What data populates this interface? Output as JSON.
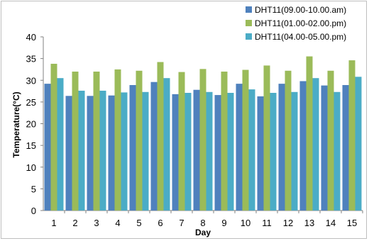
{
  "chart_data": {
    "type": "bar",
    "title": "",
    "xlabel": "Day",
    "ylabel": "Temperature(°C)",
    "categories": [
      "1",
      "2",
      "3",
      "4",
      "5",
      "6",
      "7",
      "8",
      "9",
      "10",
      "11",
      "12",
      "13",
      "14",
      "15"
    ],
    "ylim": [
      0,
      40
    ],
    "yticks": [
      0,
      5,
      10,
      15,
      20,
      25,
      30,
      35,
      40
    ],
    "grid": false,
    "legend_position": "top-right",
    "series": [
      {
        "name": "DHT11(09.00-10.00.am)",
        "color": "#4f81bd",
        "values": [
          29.2,
          26.4,
          26.4,
          26.5,
          28.9,
          29.6,
          26.8,
          27.8,
          26.6,
          29.2,
          26.3,
          29.2,
          29.8,
          28.8,
          28.9
        ]
      },
      {
        "name": "DHT11(01.00-02.00.pm)",
        "color": "#9bbb59",
        "values": [
          33.8,
          32.0,
          32.0,
          32.5,
          32.2,
          34.2,
          31.9,
          32.6,
          32.0,
          32.4,
          33.4,
          32.2,
          35.5,
          32.2,
          34.6
        ]
      },
      {
        "name": "DHT11(04.00-05.00.pm)",
        "color": "#4bacc6",
        "values": [
          30.5,
          27.6,
          27.6,
          27.2,
          27.3,
          30.5,
          27.1,
          27.3,
          27.1,
          27.9,
          27.1,
          27.3,
          30.5,
          27.3,
          30.8
        ]
      }
    ]
  }
}
